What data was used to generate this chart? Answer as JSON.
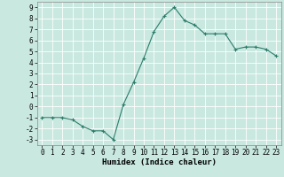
{
  "x": [
    0,
    1,
    2,
    3,
    4,
    5,
    6,
    7,
    8,
    9,
    10,
    11,
    12,
    13,
    14,
    15,
    16,
    17,
    18,
    19,
    20,
    21,
    22,
    23
  ],
  "y": [
    -1,
    -1,
    -1,
    -1.2,
    -1.8,
    -2.2,
    -2.2,
    -3,
    0.2,
    2.2,
    4.4,
    6.8,
    8.2,
    9,
    7.8,
    7.4,
    6.6,
    6.6,
    6.6,
    5.2,
    5.4,
    5.4,
    5.2,
    4.6
  ],
  "line_color": "#2d7d6b",
  "marker": "+",
  "bg_color": "#c8e8e0",
  "grid_color": "#ffffff",
  "xlabel": "Humidex (Indice chaleur)",
  "xlim": [
    -0.5,
    23.5
  ],
  "ylim": [
    -3.5,
    9.5
  ],
  "yticks": [
    -3,
    -2,
    -1,
    0,
    1,
    2,
    3,
    4,
    5,
    6,
    7,
    8,
    9
  ],
  "xticks": [
    0,
    1,
    2,
    3,
    4,
    5,
    6,
    7,
    8,
    9,
    10,
    11,
    12,
    13,
    14,
    15,
    16,
    17,
    18,
    19,
    20,
    21,
    22,
    23
  ],
  "tick_label_fontsize": 5.5,
  "xlabel_fontsize": 6.5,
  "line_width": 0.8,
  "marker_size": 3,
  "marker_edge_width": 0.8
}
